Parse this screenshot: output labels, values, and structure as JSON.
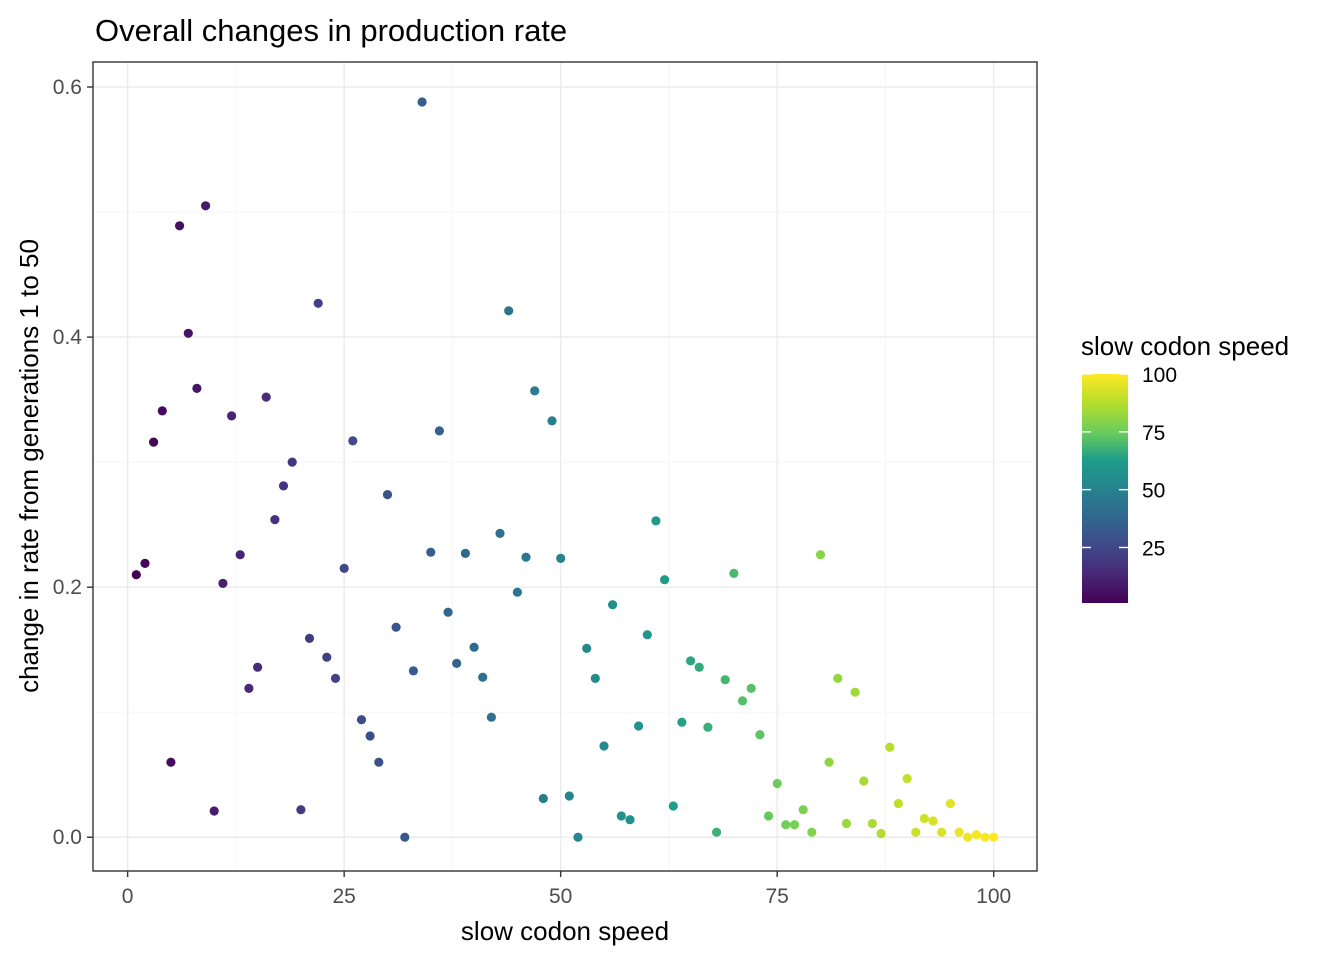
{
  "chart_data": {
    "type": "scatter",
    "title": "Overall changes in production rate",
    "xlabel": "slow codon speed",
    "ylabel": "change in rate from generations 1 to 50",
    "xlim": [
      -4,
      105
    ],
    "ylim": [
      -0.027,
      0.62
    ],
    "xticks": [
      0,
      25,
      50,
      75,
      100
    ],
    "yticks": [
      0.0,
      0.2,
      0.4,
      0.6
    ],
    "xtick_labels": [
      "0",
      "25",
      "50",
      "75",
      "100"
    ],
    "ytick_labels": [
      "0.0",
      "0.2",
      "0.4",
      "0.6"
    ],
    "grid": true,
    "legend": {
      "title": "slow codon speed",
      "placement": "right",
      "type": "colorbar",
      "range": [
        1,
        100
      ],
      "ticks": [
        25,
        50,
        75,
        100
      ],
      "tick_labels": [
        "25",
        "50",
        "75",
        "100"
      ],
      "palette": "viridis",
      "colors": [
        "#440154",
        "#482777",
        "#3f4a8a",
        "#31678e",
        "#26838f",
        "#1f9d8a",
        "#6cce5a",
        "#b6de2b",
        "#fee825"
      ]
    },
    "points": [
      {
        "x": 1,
        "y": 0.21
      },
      {
        "x": 2,
        "y": 0.219
      },
      {
        "x": 3,
        "y": 0.316
      },
      {
        "x": 4,
        "y": 0.341
      },
      {
        "x": 5,
        "y": 0.06
      },
      {
        "x": 6,
        "y": 0.489
      },
      {
        "x": 7,
        "y": 0.403
      },
      {
        "x": 8,
        "y": 0.359
      },
      {
        "x": 9,
        "y": 0.505
      },
      {
        "x": 10,
        "y": 0.021
      },
      {
        "x": 11,
        "y": 0.203
      },
      {
        "x": 12,
        "y": 0.337
      },
      {
        "x": 13,
        "y": 0.226
      },
      {
        "x": 14,
        "y": 0.119
      },
      {
        "x": 15,
        "y": 0.136
      },
      {
        "x": 16,
        "y": 0.352
      },
      {
        "x": 17,
        "y": 0.254
      },
      {
        "x": 18,
        "y": 0.281
      },
      {
        "x": 19,
        "y": 0.3
      },
      {
        "x": 20,
        "y": 0.022
      },
      {
        "x": 21,
        "y": 0.159
      },
      {
        "x": 22,
        "y": 0.427
      },
      {
        "x": 23,
        "y": 0.144
      },
      {
        "x": 24,
        "y": 0.127
      },
      {
        "x": 25,
        "y": 0.215
      },
      {
        "x": 26,
        "y": 0.317
      },
      {
        "x": 27,
        "y": 0.094
      },
      {
        "x": 28,
        "y": 0.081
      },
      {
        "x": 29,
        "y": 0.06
      },
      {
        "x": 30,
        "y": 0.274
      },
      {
        "x": 31,
        "y": 0.168
      },
      {
        "x": 32,
        "y": 0.0
      },
      {
        "x": 33,
        "y": 0.133
      },
      {
        "x": 34,
        "y": 0.588
      },
      {
        "x": 35,
        "y": 0.228
      },
      {
        "x": 36,
        "y": 0.325
      },
      {
        "x": 37,
        "y": 0.18
      },
      {
        "x": 38,
        "y": 0.139
      },
      {
        "x": 39,
        "y": 0.227
      },
      {
        "x": 40,
        "y": 0.152
      },
      {
        "x": 41,
        "y": 0.128
      },
      {
        "x": 42,
        "y": 0.096
      },
      {
        "x": 43,
        "y": 0.243
      },
      {
        "x": 44,
        "y": 0.421
      },
      {
        "x": 45,
        "y": 0.196
      },
      {
        "x": 46,
        "y": 0.224
      },
      {
        "x": 47,
        "y": 0.357
      },
      {
        "x": 48,
        "y": 0.031
      },
      {
        "x": 49,
        "y": 0.333
      },
      {
        "x": 50,
        "y": 0.223
      },
      {
        "x": 51,
        "y": 0.033
      },
      {
        "x": 52,
        "y": 0.0
      },
      {
        "x": 53,
        "y": 0.151
      },
      {
        "x": 54,
        "y": 0.127
      },
      {
        "x": 55,
        "y": 0.073
      },
      {
        "x": 56,
        "y": 0.186
      },
      {
        "x": 57,
        "y": 0.017
      },
      {
        "x": 58,
        "y": 0.014
      },
      {
        "x": 59,
        "y": 0.089
      },
      {
        "x": 60,
        "y": 0.162
      },
      {
        "x": 61,
        "y": 0.253
      },
      {
        "x": 62,
        "y": 0.206
      },
      {
        "x": 63,
        "y": 0.025
      },
      {
        "x": 64,
        "y": 0.092
      },
      {
        "x": 65,
        "y": 0.141
      },
      {
        "x": 66,
        "y": 0.136
      },
      {
        "x": 67,
        "y": 0.088
      },
      {
        "x": 68,
        "y": 0.004
      },
      {
        "x": 69,
        "y": 0.126
      },
      {
        "x": 70,
        "y": 0.211
      },
      {
        "x": 71,
        "y": 0.109
      },
      {
        "x": 72,
        "y": 0.119
      },
      {
        "x": 73,
        "y": 0.082
      },
      {
        "x": 74,
        "y": 0.017
      },
      {
        "x": 75,
        "y": 0.043
      },
      {
        "x": 76,
        "y": 0.01
      },
      {
        "x": 77,
        "y": 0.01
      },
      {
        "x": 78,
        "y": 0.022
      },
      {
        "x": 79,
        "y": 0.004
      },
      {
        "x": 80,
        "y": 0.226
      },
      {
        "x": 81,
        "y": 0.06
      },
      {
        "x": 82,
        "y": 0.127
      },
      {
        "x": 83,
        "y": 0.011
      },
      {
        "x": 84,
        "y": 0.116
      },
      {
        "x": 85,
        "y": 0.045
      },
      {
        "x": 86,
        "y": 0.011
      },
      {
        "x": 87,
        "y": 0.003
      },
      {
        "x": 88,
        "y": 0.072
      },
      {
        "x": 89,
        "y": 0.027
      },
      {
        "x": 90,
        "y": 0.047
      },
      {
        "x": 91,
        "y": 0.004
      },
      {
        "x": 92,
        "y": 0.015
      },
      {
        "x": 93,
        "y": 0.013
      },
      {
        "x": 94,
        "y": 0.004
      },
      {
        "x": 95,
        "y": 0.027
      },
      {
        "x": 96,
        "y": 0.004
      },
      {
        "x": 97,
        "y": 0.0
      },
      {
        "x": 98,
        "y": 0.002
      },
      {
        "x": 99,
        "y": 0.0
      },
      {
        "x": 100,
        "y": 0.0
      }
    ]
  }
}
